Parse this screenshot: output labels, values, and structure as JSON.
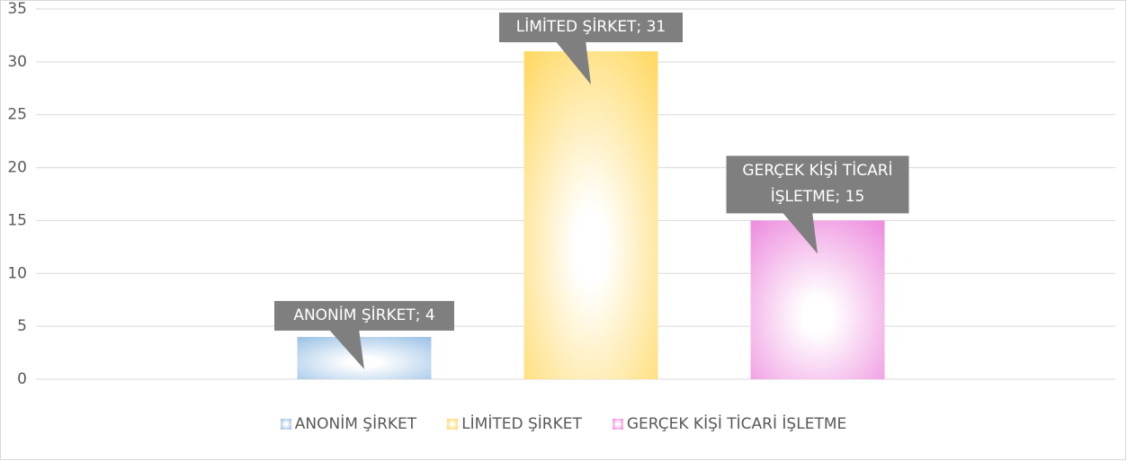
{
  "chart_data": {
    "type": "bar",
    "categories": [
      null
    ],
    "series": [
      {
        "name": "ANONİM ŞİRKET",
        "color": "#9dc3e6",
        "values": [
          4
        ],
        "value_labels": [
          "ANONİM ŞİRKET; 4"
        ]
      },
      {
        "name": "LİMİTED ŞİRKET",
        "color": "#ffd966",
        "values": [
          31
        ],
        "value_labels": [
          "LİMİTED ŞİRKET; 31"
        ]
      },
      {
        "name": "GERÇEK KİŞİ TİCARİ İŞLETME",
        "color": "#ee8fdf",
        "values": [
          15
        ],
        "value_labels": [
          "GERÇEK KİŞİ TİCARİ İŞLETME; 15"
        ]
      }
    ],
    "ylim": [
      0,
      35
    ],
    "yticks": [
      0,
      5,
      10,
      15,
      20,
      25,
      30,
      35
    ],
    "grid": true,
    "legend": "bottom"
  }
}
